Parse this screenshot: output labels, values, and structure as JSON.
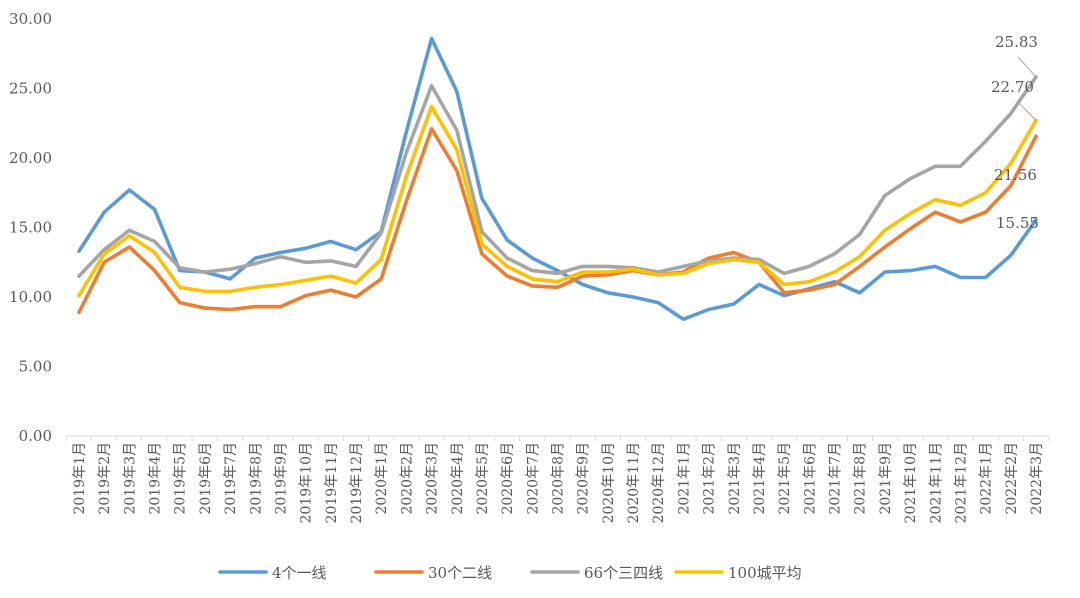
{
  "chart_data": {
    "type": "line",
    "title": "",
    "xlabel": "",
    "ylabel": "",
    "ylim": [
      0,
      30
    ],
    "yticks": [
      "0.00",
      "5.00",
      "10.00",
      "15.00",
      "20.00",
      "25.00",
      "30.00"
    ],
    "grid": false,
    "legend": "bottom",
    "categories": [
      "2019年1月",
      "2019年2月",
      "2019年3月",
      "2019年4月",
      "2019年5月",
      "2019年6月",
      "2019年7月",
      "2019年8月",
      "2019年9月",
      "2019年10月",
      "2019年11月",
      "2019年12月",
      "2020年1月",
      "2020年2月",
      "2020年3月",
      "2020年4月",
      "2020年5月",
      "2020年6月",
      "2020年7月",
      "2020年8月",
      "2020年9月",
      "2020年10月",
      "2020年11月",
      "2020年12月",
      "2021年1月",
      "2021年2月",
      "2021年3月",
      "2021年4月",
      "2021年5月",
      "2021年6月",
      "2021年7月",
      "2021年8月",
      "2021年9月",
      "2021年10月",
      "2021年11月",
      "2021年12月",
      "2022年1月",
      "2022年2月",
      "2022年3月"
    ],
    "series": [
      {
        "name": "4个一线",
        "color": "#5B9BD5",
        "values": [
          13.3,
          16.1,
          17.7,
          16.3,
          11.9,
          11.8,
          11.3,
          12.8,
          13.2,
          13.5,
          14.0,
          13.4,
          14.7,
          21.9,
          28.6,
          24.8,
          17.1,
          14.1,
          12.8,
          11.9,
          10.9,
          10.3,
          10.0,
          9.6,
          8.4,
          9.1,
          9.5,
          10.9,
          10.1,
          10.6,
          11.1,
          10.3,
          11.8,
          11.9,
          12.2,
          11.4,
          11.4,
          13.0,
          15.55
        ]
      },
      {
        "name": "30个二线",
        "color": "#ED7D31",
        "values": [
          8.9,
          12.5,
          13.6,
          11.9,
          9.6,
          9.2,
          9.1,
          9.3,
          9.3,
          10.1,
          10.5,
          10.0,
          11.3,
          16.9,
          22.1,
          19.1,
          13.1,
          11.5,
          10.8,
          10.7,
          11.5,
          11.6,
          11.9,
          11.6,
          11.8,
          12.8,
          13.2,
          12.5,
          10.3,
          10.5,
          10.9,
          12.2,
          13.6,
          14.9,
          16.1,
          15.4,
          16.1,
          18.0,
          21.56
        ]
      },
      {
        "name": "66个三四线",
        "color": "#A5A5A5",
        "values": [
          11.5,
          13.4,
          14.8,
          14.0,
          12.1,
          11.8,
          12.0,
          12.4,
          12.9,
          12.5,
          12.6,
          12.2,
          14.6,
          20.4,
          25.2,
          22.0,
          14.7,
          12.8,
          11.9,
          11.7,
          12.2,
          12.2,
          12.1,
          11.8,
          12.2,
          12.6,
          12.8,
          12.7,
          11.7,
          12.2,
          13.1,
          14.5,
          17.3,
          18.5,
          19.4,
          19.4,
          21.2,
          23.2,
          25.83
        ]
      },
      {
        "name": "100城平均",
        "color": "#FFC000",
        "values": [
          10.1,
          13.1,
          14.4,
          13.2,
          10.7,
          10.4,
          10.4,
          10.7,
          10.9,
          11.2,
          11.5,
          11.0,
          12.7,
          18.7,
          23.7,
          20.6,
          13.8,
          12.2,
          11.3,
          11.1,
          11.8,
          11.8,
          12.0,
          11.6,
          11.7,
          12.4,
          12.7,
          12.5,
          10.9,
          11.1,
          11.8,
          12.9,
          14.8,
          16.0,
          17.0,
          16.6,
          17.5,
          19.6,
          22.7
        ]
      }
    ],
    "annotations": [
      {
        "series": 0,
        "text": "15.55"
      },
      {
        "series": 1,
        "text": "21.56"
      },
      {
        "series": 2,
        "text": "25.83"
      },
      {
        "series": 3,
        "text": "22.70"
      }
    ]
  }
}
